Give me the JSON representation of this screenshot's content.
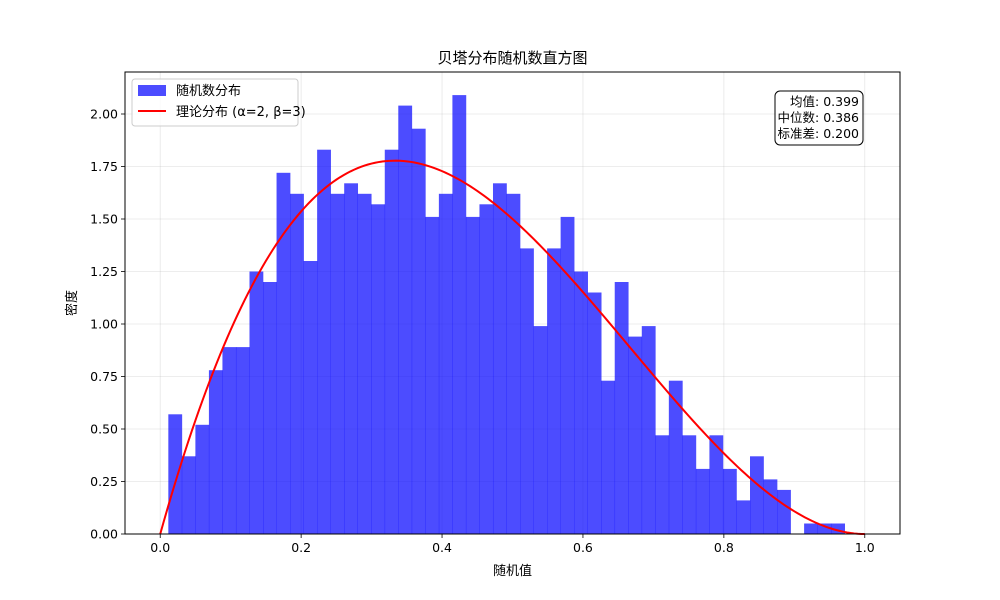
{
  "chart_data": {
    "type": "bar",
    "title": "贝塔分布随机数直方图",
    "xlabel": "随机值",
    "ylabel": "密度",
    "xlim": [
      -0.05,
      1.05
    ],
    "ylim": [
      0,
      2.2
    ],
    "xticks": [
      "0.0",
      "0.2",
      "0.4",
      "0.6",
      "0.8",
      "1.0"
    ],
    "xtick_values": [
      0,
      0.2,
      0.4,
      0.6,
      0.8,
      1.0
    ],
    "yticks": [
      "0.00",
      "0.25",
      "0.50",
      "0.75",
      "1.00",
      "1.25",
      "1.50",
      "1.75",
      "2.00"
    ],
    "ytick_values": [
      0,
      0.25,
      0.5,
      0.75,
      1.0,
      1.25,
      1.5,
      1.75,
      2.0
    ],
    "grid": true,
    "legend_position": "top-left",
    "histogram": {
      "name": "随机数分布",
      "color": "#0000ff",
      "bins": [
        [
          0.0115,
          0.0307,
          0.57
        ],
        [
          0.0307,
          0.0499,
          0.37
        ],
        [
          0.0499,
          0.0691,
          0.52
        ],
        [
          0.0691,
          0.0883,
          0.78
        ],
        [
          0.0883,
          0.1075,
          0.89
        ],
        [
          0.1075,
          0.1267,
          0.89
        ],
        [
          0.1267,
          0.1459,
          1.25
        ],
        [
          0.1459,
          0.1651,
          1.2
        ],
        [
          0.1651,
          0.1843,
          1.72
        ],
        [
          0.1843,
          0.2035,
          1.62
        ],
        [
          0.2035,
          0.2227,
          1.3
        ],
        [
          0.2227,
          0.2419,
          1.83
        ],
        [
          0.2419,
          0.2611,
          1.62
        ],
        [
          0.2611,
          0.2803,
          1.67
        ],
        [
          0.2803,
          0.2995,
          1.62
        ],
        [
          0.2995,
          0.3187,
          1.57
        ],
        [
          0.3187,
          0.3379,
          1.83
        ],
        [
          0.3379,
          0.3571,
          2.04
        ],
        [
          0.3571,
          0.3763,
          1.93
        ],
        [
          0.3763,
          0.3955,
          1.51
        ],
        [
          0.3955,
          0.4147,
          1.62
        ],
        [
          0.4147,
          0.4339,
          2.09
        ],
        [
          0.4339,
          0.4531,
          1.51
        ],
        [
          0.4531,
          0.4723,
          1.57
        ],
        [
          0.4723,
          0.4915,
          1.67
        ],
        [
          0.4915,
          0.5107,
          1.62
        ],
        [
          0.5107,
          0.5299,
          1.36
        ],
        [
          0.5299,
          0.5491,
          0.99
        ],
        [
          0.5491,
          0.5683,
          1.36
        ],
        [
          0.5683,
          0.5875,
          1.51
        ],
        [
          0.5875,
          0.6067,
          1.25
        ],
        [
          0.6067,
          0.6259,
          1.15
        ],
        [
          0.6259,
          0.6451,
          0.73
        ],
        [
          0.6451,
          0.6643,
          1.2
        ],
        [
          0.6643,
          0.6835,
          0.94
        ],
        [
          0.6835,
          0.7027,
          0.99
        ],
        [
          0.7027,
          0.7219,
          0.47
        ],
        [
          0.7219,
          0.7411,
          0.73
        ],
        [
          0.7411,
          0.7603,
          0.47
        ],
        [
          0.7603,
          0.7795,
          0.31
        ],
        [
          0.7795,
          0.7987,
          0.47
        ],
        [
          0.7987,
          0.8179,
          0.31
        ],
        [
          0.8179,
          0.8371,
          0.16
        ],
        [
          0.8371,
          0.8563,
          0.37
        ],
        [
          0.8563,
          0.8755,
          0.26
        ],
        [
          0.8755,
          0.8947,
          0.21
        ],
        [
          0.8947,
          0.9139,
          0.0
        ],
        [
          0.9139,
          0.9331,
          0.05
        ],
        [
          0.9331,
          0.9523,
          0.05
        ],
        [
          0.9523,
          0.9715,
          0.05
        ]
      ]
    },
    "curve": {
      "name": "理论分布 (α=2, β=3)",
      "color": "#ff0000",
      "alpha": 2,
      "beta": 3
    },
    "stats": {
      "mean_label": "均值: 0.399",
      "median_label": "中位数: 0.386",
      "std_label": "标准差: 0.200"
    }
  }
}
